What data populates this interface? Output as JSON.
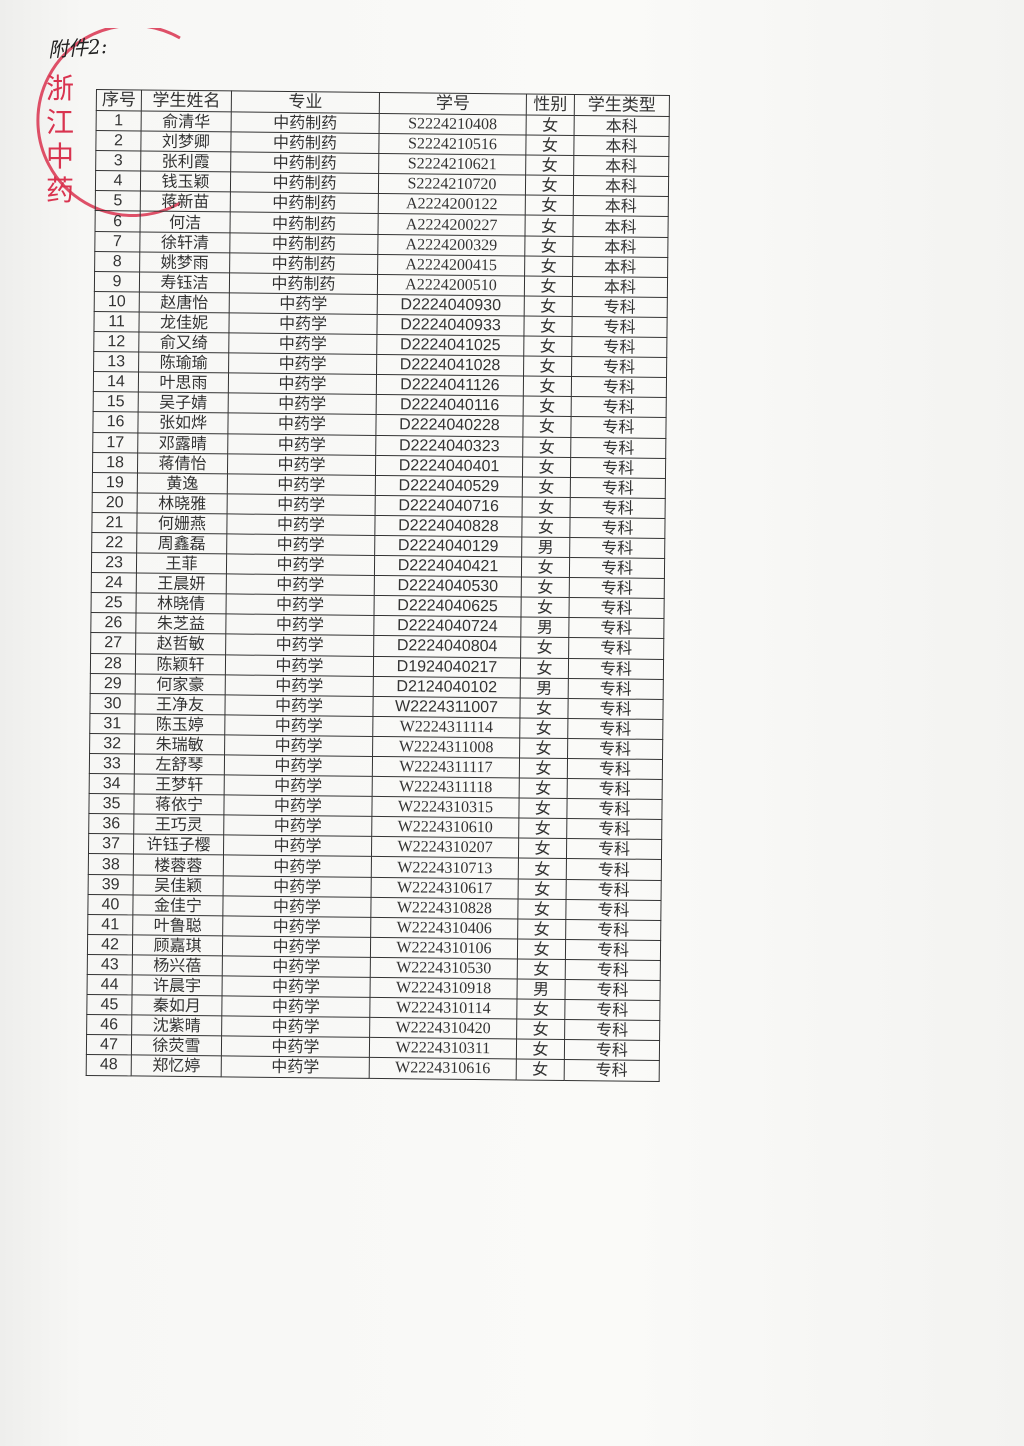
{
  "annotation": "附件2:",
  "stamp": {
    "text": "浙江…中药",
    "color": "#d9334f"
  },
  "table": {
    "headers": [
      "序号",
      "学生姓名",
      "专业",
      "学号",
      "性别",
      "学生类型"
    ],
    "rows": [
      [
        "1",
        "俞清华",
        "中药制药",
        "S2224210408",
        "女",
        "本科"
      ],
      [
        "2",
        "刘梦卿",
        "中药制药",
        "S2224210516",
        "女",
        "本科"
      ],
      [
        "3",
        "张利霞",
        "中药制药",
        "S2224210621",
        "女",
        "本科"
      ],
      [
        "4",
        "钱玉颖",
        "中药制药",
        "S2224210720",
        "女",
        "本科"
      ],
      [
        "5",
        "蒋新苗",
        "中药制药",
        "A2224200122",
        "女",
        "本科"
      ],
      [
        "6",
        "何洁",
        "中药制药",
        "A2224200227",
        "女",
        "本科"
      ],
      [
        "7",
        "徐轩清",
        "中药制药",
        "A2224200329",
        "女",
        "本科"
      ],
      [
        "8",
        "姚梦雨",
        "中药制药",
        "A2224200415",
        "女",
        "本科"
      ],
      [
        "9",
        "寿钰洁",
        "中药制药",
        "A2224200510",
        "女",
        "本科"
      ],
      [
        "10",
        "赵唐怡",
        "中药学",
        "D2224040930",
        "女",
        "专科"
      ],
      [
        "11",
        "龙佳妮",
        "中药学",
        "D2224040933",
        "女",
        "专科"
      ],
      [
        "12",
        "俞又绮",
        "中药学",
        "D2224041025",
        "女",
        "专科"
      ],
      [
        "13",
        "陈瑜瑜",
        "中药学",
        "D2224041028",
        "女",
        "专科"
      ],
      [
        "14",
        "叶思雨",
        "中药学",
        "D2224041126",
        "女",
        "专科"
      ],
      [
        "15",
        "吴子婧",
        "中药学",
        "D2224040116",
        "女",
        "专科"
      ],
      [
        "16",
        "张如烨",
        "中药学",
        "D2224040228",
        "女",
        "专科"
      ],
      [
        "17",
        "邓露晴",
        "中药学",
        "D2224040323",
        "女",
        "专科"
      ],
      [
        "18",
        "蒋倩怡",
        "中药学",
        "D2224040401",
        "女",
        "专科"
      ],
      [
        "19",
        "黄逸",
        "中药学",
        "D2224040529",
        "女",
        "专科"
      ],
      [
        "20",
        "林晓雅",
        "中药学",
        "D2224040716",
        "女",
        "专科"
      ],
      [
        "21",
        "何姗燕",
        "中药学",
        "D2224040828",
        "女",
        "专科"
      ],
      [
        "22",
        "周鑫磊",
        "中药学",
        "D2224040129",
        "男",
        "专科"
      ],
      [
        "23",
        "王菲",
        "中药学",
        "D2224040421",
        "女",
        "专科"
      ],
      [
        "24",
        "王晨妍",
        "中药学",
        "D2224040530",
        "女",
        "专科"
      ],
      [
        "25",
        "林晓倩",
        "中药学",
        "D2224040625",
        "女",
        "专科"
      ],
      [
        "26",
        "朱芝益",
        "中药学",
        "D2224040724",
        "男",
        "专科"
      ],
      [
        "27",
        "赵哲敏",
        "中药学",
        "D2224040804",
        "女",
        "专科"
      ],
      [
        "28",
        "陈颖轩",
        "中药学",
        "D1924040217",
        "女",
        "专科"
      ],
      [
        "29",
        "何家豪",
        "中药学",
        "D2124040102",
        "男",
        "专科"
      ],
      [
        "30",
        "王净友",
        "中药学",
        "W2224311007",
        "女",
        "专科"
      ],
      [
        "31",
        "陈玉婷",
        "中药学",
        "W2224311114",
        "女",
        "专科"
      ],
      [
        "32",
        "朱瑞敏",
        "中药学",
        "W2224311008",
        "女",
        "专科"
      ],
      [
        "33",
        "左舒琴",
        "中药学",
        "W2224311117",
        "女",
        "专科"
      ],
      [
        "34",
        "王梦轩",
        "中药学",
        "W2224311118",
        "女",
        "专科"
      ],
      [
        "35",
        "蒋依宁",
        "中药学",
        "W2224310315",
        "女",
        "专科"
      ],
      [
        "36",
        "王巧灵",
        "中药学",
        "W2224310610",
        "女",
        "专科"
      ],
      [
        "37",
        "许钰子樱",
        "中药学",
        "W2224310207",
        "女",
        "专科"
      ],
      [
        "38",
        "楼蓉蓉",
        "中药学",
        "W2224310713",
        "女",
        "专科"
      ],
      [
        "39",
        "吴佳颖",
        "中药学",
        "W2224310617",
        "女",
        "专科"
      ],
      [
        "40",
        "金佳宁",
        "中药学",
        "W2224310828",
        "女",
        "专科"
      ],
      [
        "41",
        "叶鲁聪",
        "中药学",
        "W2224310406",
        "女",
        "专科"
      ],
      [
        "42",
        "顾嘉琪",
        "中药学",
        "W2224310106",
        "女",
        "专科"
      ],
      [
        "43",
        "杨兴蓓",
        "中药学",
        "W2224310530",
        "女",
        "专科"
      ],
      [
        "44",
        "许晨宇",
        "中药学",
        "W2224310918",
        "男",
        "专科"
      ],
      [
        "45",
        "秦如月",
        "中药学",
        "W2224310114",
        "女",
        "专科"
      ],
      [
        "46",
        "沈紫晴",
        "中药学",
        "W2224310420",
        "女",
        "专科"
      ],
      [
        "47",
        "徐荧雪",
        "中药学",
        "W2224310311",
        "女",
        "专科"
      ],
      [
        "48",
        "郑忆婷",
        "中药学",
        "W2224310616",
        "女",
        "专科"
      ]
    ]
  }
}
